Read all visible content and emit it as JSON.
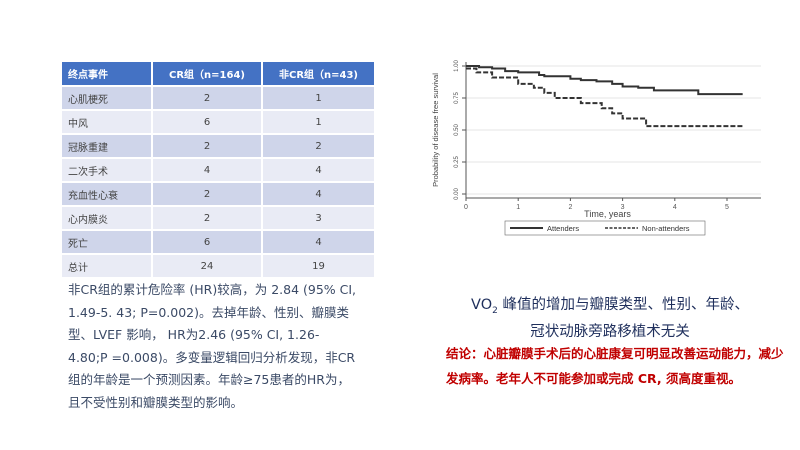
{
  "table": {
    "headers": [
      "终点事件",
      "CR组（n=164)",
      "非CR组（n=43)"
    ],
    "rows": [
      [
        "心肌梗死",
        "2",
        "1"
      ],
      [
        "中风",
        "6",
        "1"
      ],
      [
        "冠脉重建",
        "2",
        "2"
      ],
      [
        "二次手术",
        "4",
        "4"
      ],
      [
        "充血性心衰",
        "2",
        "4"
      ],
      [
        "心内膜炎",
        "2",
        "3"
      ],
      [
        "死亡",
        "6",
        "4"
      ],
      [
        "总计",
        "24",
        "19"
      ]
    ]
  },
  "paragraph": "非CR组的累计危险率 (HR)较高，为 2.84 (95% CI, 1.49-5. 43; P=0.002)。去掉年龄、性别、瓣膜类型、LVEF 影响， HR为2.46 (95% CI, 1.26-4.80;P =0.008)。多变量逻辑回归分析发现，非CR组的年龄是一个预测因素。年龄≥75患者的HR为，且不受性别和瓣膜类型的影响。",
  "title_line1": "VO",
  "title_sub": "2",
  "title_line1_rest": " 峰值的增加与瓣膜类型、性别、年龄、",
  "title_line2": "冠状动脉旁路移植术无关",
  "conclusion": "结论：心脏瓣膜手术后的心脏康复可明显改善运动能力，减少发病率。老年人不可能参加或完成 CR, 须高度重视。",
  "chart_data": {
    "type": "line",
    "step": true,
    "xlabel": "Time, years",
    "ylabel": "Probability of disease free survival",
    "xlim": [
      0,
      5.4
    ],
    "ylim": [
      0,
      1
    ],
    "xticks": [
      "0",
      "1",
      "2",
      "3",
      "4",
      "5"
    ],
    "yticks": [
      "0.00",
      "0.25",
      "0.50",
      "0.75",
      "1.00"
    ],
    "grid": true,
    "legend": "bottom",
    "series": [
      {
        "name": "Attenders",
        "style": "solid",
        "x": [
          0,
          0.25,
          0.5,
          0.75,
          1.0,
          1.4,
          1.5,
          2.0,
          2.2,
          2.5,
          2.8,
          3.0,
          3.3,
          3.6,
          4.45,
          5.3
        ],
        "y": [
          1,
          0.99,
          0.98,
          0.96,
          0.95,
          0.93,
          0.92,
          0.9,
          0.89,
          0.88,
          0.86,
          0.84,
          0.83,
          0.81,
          0.78,
          0.78
        ]
      },
      {
        "name": "Non-attenders",
        "style": "dashed",
        "x": [
          0,
          0.2,
          0.5,
          1.0,
          1.3,
          1.5,
          1.7,
          2.2,
          2.6,
          2.8,
          3.0,
          3.45,
          5.3
        ],
        "y": [
          0.98,
          0.95,
          0.91,
          0.86,
          0.83,
          0.79,
          0.75,
          0.71,
          0.67,
          0.63,
          0.59,
          0.53,
          0.53
        ]
      }
    ]
  }
}
